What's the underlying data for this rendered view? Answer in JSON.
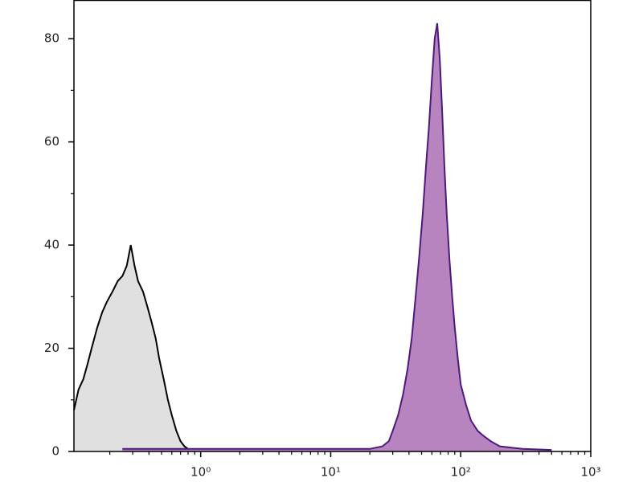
{
  "chart_data": {
    "type": "area",
    "xscale": "log",
    "xlim": [
      0.106,
      1000
    ],
    "ylim": [
      0,
      87.5
    ],
    "xticks": [
      {
        "value": 1,
        "label": "10⁰"
      },
      {
        "value": 10,
        "label": "10¹"
      },
      {
        "value": 100,
        "label": "10²"
      },
      {
        "value": 1000,
        "label": "10³"
      }
    ],
    "xminor_ticks": [
      0.2,
      0.3,
      0.4,
      0.5,
      0.6,
      0.7,
      0.8,
      0.9,
      2,
      3,
      4,
      5,
      6,
      7,
      8,
      9,
      20,
      30,
      40,
      50,
      60,
      70,
      80,
      90,
      200,
      300,
      400,
      500,
      600,
      700,
      800,
      900
    ],
    "yticks": [
      0,
      20,
      40,
      60,
      80
    ],
    "yminor_ticks": [
      10,
      30,
      50,
      70
    ],
    "series": [
      {
        "color": "#000000",
        "fill": "#e0e0e0",
        "x": [
          0.106,
          0.115,
          0.125,
          0.135,
          0.145,
          0.16,
          0.175,
          0.19,
          0.21,
          0.23,
          0.25,
          0.27,
          0.29,
          0.31,
          0.33,
          0.36,
          0.39,
          0.42,
          0.45,
          0.48,
          0.52,
          0.56,
          0.6,
          0.65,
          0.7,
          0.75,
          0.8,
          0.9
        ],
        "values": [
          8,
          12,
          14,
          17,
          20,
          24,
          27,
          29,
          31,
          33,
          34,
          36,
          40,
          36,
          33,
          31,
          28,
          25,
          22,
          18,
          14,
          10,
          7,
          4,
          2,
          1,
          0.5,
          0
        ]
      },
      {
        "color": "#4b1a7a",
        "fill": "#b784c0",
        "x": [
          0.25,
          1,
          3,
          10,
          20,
          25,
          28,
          30,
          33,
          36,
          39,
          42,
          45,
          48,
          51,
          54,
          57,
          60,
          63,
          66,
          69,
          72,
          75,
          78,
          82,
          86,
          90,
          95,
          100,
          110,
          120,
          135,
          150,
          170,
          200,
          300,
          500
        ],
        "values": [
          0.5,
          0.5,
          0.5,
          0.5,
          0.5,
          1,
          2,
          4,
          7,
          11,
          16,
          22,
          30,
          38,
          46,
          55,
          63,
          72,
          80,
          83,
          76,
          66,
          55,
          46,
          37,
          30,
          24,
          18,
          13,
          9,
          6,
          4,
          3,
          2,
          1,
          0.5,
          0.3
        ]
      }
    ]
  }
}
